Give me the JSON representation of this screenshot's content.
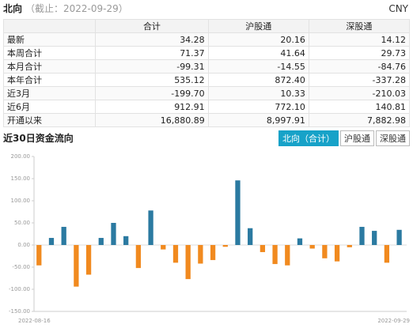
{
  "header": {
    "title": "北向",
    "subtitle": "（截止：2022-09-29）",
    "currency": "CNY"
  },
  "table": {
    "columns": [
      "合计",
      "沪股通",
      "深股通"
    ],
    "rows": [
      [
        "最新",
        "34.28",
        "20.16",
        "14.12"
      ],
      [
        "本周合计",
        "71.37",
        "41.64",
        "29.73"
      ],
      [
        "本月合计",
        "-99.31",
        "-14.55",
        "-84.76"
      ],
      [
        "本年合计",
        "535.12",
        "872.40",
        "-337.28"
      ],
      [
        "近3月",
        "-199.70",
        "10.33",
        "-210.03"
      ],
      [
        "近6月",
        "912.91",
        "772.10",
        "140.81"
      ],
      [
        "开通以来",
        "16,880.89",
        "8,997.91",
        "7,882.98"
      ]
    ]
  },
  "tabs": [
    "北向（合计）",
    "沪股通",
    "深股通"
  ],
  "chart_data": {
    "type": "bar",
    "title": "近30日资金流向",
    "categories": [
      "2022-08-16",
      null,
      null,
      null,
      null,
      null,
      null,
      null,
      null,
      null,
      null,
      null,
      null,
      null,
      null,
      null,
      null,
      null,
      null,
      null,
      null,
      null,
      null,
      null,
      null,
      null,
      null,
      null,
      null,
      "2022-09-29"
    ],
    "values": [
      -46,
      16,
      41,
      -94,
      -67,
      16,
      50,
      20,
      -52,
      78,
      -10,
      -40,
      -77,
      -42,
      -34,
      -4,
      146,
      38,
      -16,
      -43,
      -46,
      15,
      -8,
      -30,
      -37,
      -5,
      41,
      32,
      -40,
      34.28
    ],
    "positive_color": "#2b7aa1",
    "negative_color": "#f18a1f",
    "ylim": [
      -150,
      200
    ],
    "yticks": [
      {
        "value": -150,
        "label": "-150.00"
      },
      {
        "value": -100,
        "label": "-100.00"
      },
      {
        "value": -50,
        "label": "-50.00"
      },
      {
        "value": 0,
        "label": "0.00"
      },
      {
        "value": 50,
        "label": "50.00"
      },
      {
        "value": 100,
        "label": "100.00"
      },
      {
        "value": 150,
        "label": "150.00"
      },
      {
        "value": 200,
        "label": "200.00"
      }
    ]
  }
}
